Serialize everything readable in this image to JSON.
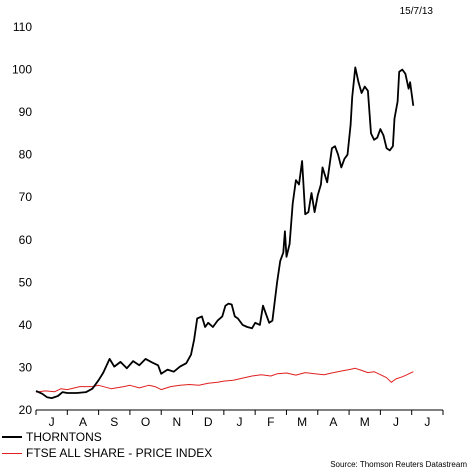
{
  "date_label": "15/7/13",
  "source": "Source: Thomson Reuters Datastream",
  "chart_data": {
    "type": "line",
    "title": "",
    "xlabel": "",
    "ylabel": "",
    "ylim": [
      20,
      110
    ],
    "yticks": [
      20,
      30,
      40,
      50,
      60,
      70,
      80,
      90,
      100,
      110
    ],
    "grid": false,
    "legend_placement": "bottom-left",
    "months": [
      "J",
      "A",
      "S",
      "O",
      "N",
      "D",
      "J",
      "F",
      "M",
      "A",
      "M",
      "J",
      "J"
    ],
    "x_unit": "months since start of July 2012",
    "series": [
      {
        "name": "THORNTONS",
        "color": "#000000",
        "points": [
          [
            0.0,
            24.5
          ],
          [
            0.2,
            23.8
          ],
          [
            0.35,
            23.0
          ],
          [
            0.5,
            22.8
          ],
          [
            0.7,
            23.3
          ],
          [
            0.85,
            24.2
          ],
          [
            1.0,
            24.0
          ],
          [
            1.3,
            24.0
          ],
          [
            1.6,
            24.2
          ],
          [
            1.8,
            25.0
          ],
          [
            2.0,
            27.0
          ],
          [
            2.15,
            28.8
          ],
          [
            2.35,
            32.0
          ],
          [
            2.5,
            30.2
          ],
          [
            2.7,
            31.3
          ],
          [
            2.9,
            29.8
          ],
          [
            3.1,
            31.5
          ],
          [
            3.3,
            30.5
          ],
          [
            3.5,
            32.0
          ],
          [
            3.7,
            31.2
          ],
          [
            3.9,
            30.5
          ],
          [
            4.0,
            28.5
          ],
          [
            4.2,
            29.5
          ],
          [
            4.4,
            29.0
          ],
          [
            4.6,
            30.2
          ],
          [
            4.8,
            31.0
          ],
          [
            4.95,
            33.0
          ],
          [
            5.05,
            36.5
          ],
          [
            5.15,
            41.5
          ],
          [
            5.3,
            42.0
          ],
          [
            5.4,
            39.5
          ],
          [
            5.5,
            40.5
          ],
          [
            5.65,
            39.5
          ],
          [
            5.8,
            41.0
          ],
          [
            5.95,
            42.0
          ],
          [
            6.05,
            44.5
          ],
          [
            6.15,
            45.0
          ],
          [
            6.25,
            44.8
          ],
          [
            6.35,
            42.0
          ],
          [
            6.45,
            41.5
          ],
          [
            6.6,
            40.0
          ],
          [
            6.75,
            39.5
          ],
          [
            6.9,
            39.2
          ],
          [
            7.0,
            40.5
          ],
          [
            7.15,
            40.0
          ],
          [
            7.25,
            44.5
          ],
          [
            7.35,
            42.5
          ],
          [
            7.45,
            40.5
          ],
          [
            7.55,
            41.0
          ],
          [
            7.7,
            50.0
          ],
          [
            7.8,
            55.0
          ],
          [
            7.9,
            57.0
          ],
          [
            7.95,
            62.0
          ],
          [
            8.0,
            56.0
          ],
          [
            8.1,
            59.0
          ],
          [
            8.2,
            68.5
          ],
          [
            8.3,
            74.0
          ],
          [
            8.4,
            73.0
          ],
          [
            8.5,
            78.5
          ],
          [
            8.6,
            66.0
          ],
          [
            8.7,
            66.5
          ],
          [
            8.8,
            71.0
          ],
          [
            8.9,
            66.5
          ],
          [
            9.0,
            70.5
          ],
          [
            9.1,
            73.0
          ],
          [
            9.15,
            77.0
          ],
          [
            9.3,
            73.5
          ],
          [
            9.45,
            81.5
          ],
          [
            9.55,
            82.0
          ],
          [
            9.65,
            80.0
          ],
          [
            9.75,
            77.0
          ],
          [
            9.85,
            79.0
          ],
          [
            9.95,
            80.0
          ],
          [
            10.05,
            87.0
          ],
          [
            10.1,
            93.5
          ],
          [
            10.2,
            100.5
          ],
          [
            10.3,
            97.0
          ],
          [
            10.4,
            94.5
          ],
          [
            10.5,
            96.0
          ],
          [
            10.6,
            95.0
          ],
          [
            10.7,
            85.0
          ],
          [
            10.8,
            83.5
          ],
          [
            10.9,
            84.0
          ],
          [
            11.0,
            86.0
          ],
          [
            11.1,
            84.5
          ],
          [
            11.2,
            81.5
          ],
          [
            11.3,
            81.0
          ],
          [
            11.4,
            82.0
          ],
          [
            11.45,
            88.5
          ],
          [
            11.55,
            92.5
          ],
          [
            11.6,
            99.5
          ],
          [
            11.7,
            100.0
          ],
          [
            11.8,
            99.0
          ],
          [
            11.9,
            95.5
          ],
          [
            11.95,
            97.0
          ],
          [
            12.05,
            91.5
          ]
        ]
      },
      {
        "name": "FTSE ALL SHARE - PRICE INDEX",
        "color": "#e02020",
        "points": [
          [
            0.0,
            24.2
          ],
          [
            0.3,
            24.5
          ],
          [
            0.6,
            24.3
          ],
          [
            0.8,
            25.0
          ],
          [
            1.0,
            24.8
          ],
          [
            1.4,
            25.5
          ],
          [
            1.8,
            25.5
          ],
          [
            2.0,
            25.8
          ],
          [
            2.4,
            25.0
          ],
          [
            2.8,
            25.5
          ],
          [
            3.0,
            25.8
          ],
          [
            3.3,
            25.2
          ],
          [
            3.6,
            25.8
          ],
          [
            3.8,
            25.5
          ],
          [
            4.0,
            24.8
          ],
          [
            4.3,
            25.5
          ],
          [
            4.6,
            25.8
          ],
          [
            4.9,
            26.0
          ],
          [
            5.2,
            25.8
          ],
          [
            5.5,
            26.3
          ],
          [
            5.8,
            26.5
          ],
          [
            6.0,
            26.8
          ],
          [
            6.3,
            27.0
          ],
          [
            6.6,
            27.5
          ],
          [
            6.9,
            28.0
          ],
          [
            7.2,
            28.3
          ],
          [
            7.5,
            28.0
          ],
          [
            7.7,
            28.5
          ],
          [
            8.0,
            28.7
          ],
          [
            8.3,
            28.2
          ],
          [
            8.6,
            28.8
          ],
          [
            8.9,
            28.5
          ],
          [
            9.2,
            28.3
          ],
          [
            9.5,
            28.8
          ],
          [
            9.8,
            29.2
          ],
          [
            10.0,
            29.5
          ],
          [
            10.2,
            29.8
          ],
          [
            10.4,
            29.3
          ],
          [
            10.6,
            28.8
          ],
          [
            10.8,
            29.0
          ],
          [
            11.0,
            28.3
          ],
          [
            11.2,
            27.6
          ],
          [
            11.35,
            26.5
          ],
          [
            11.5,
            27.3
          ],
          [
            11.7,
            27.8
          ],
          [
            11.85,
            28.3
          ],
          [
            12.05,
            29.0
          ]
        ]
      }
    ]
  }
}
